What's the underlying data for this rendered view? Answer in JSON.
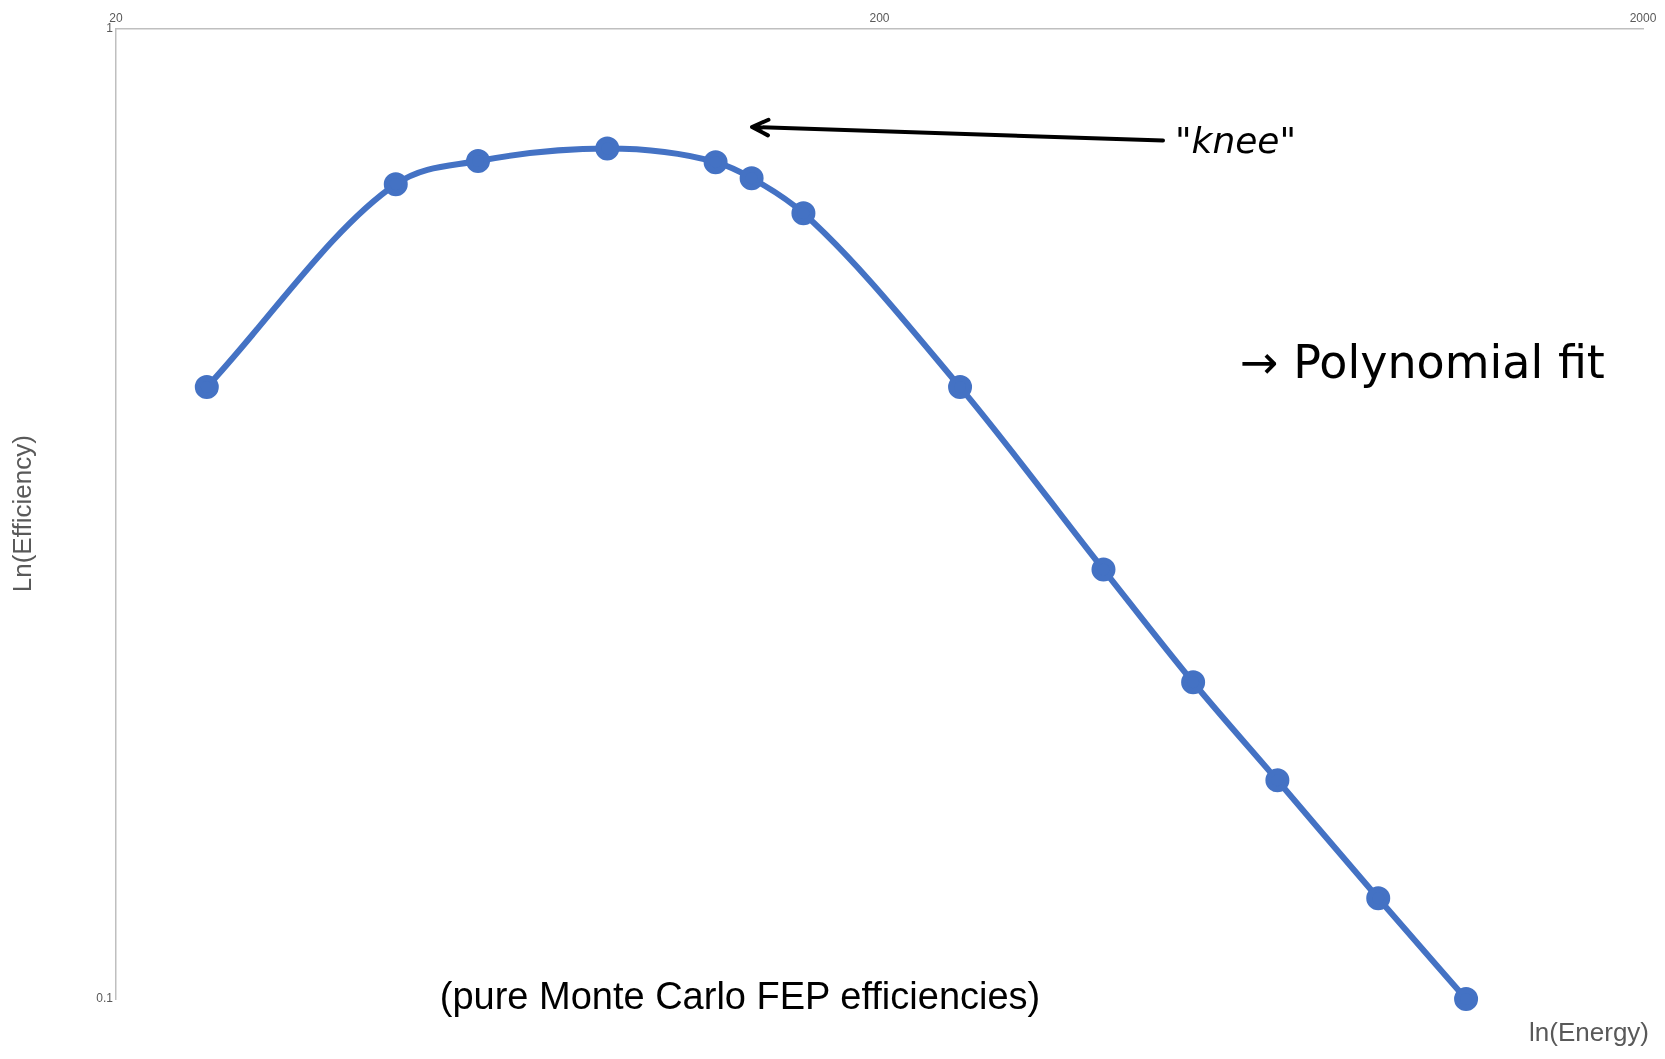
{
  "chart_data": {
    "type": "line",
    "xlabel": "ln(Energy)",
    "ylabel": "Ln(Efficiency)",
    "log": "xy",
    "grid": false,
    "legend": false,
    "marker": "circle",
    "line_style": "solid",
    "x": [
      26.3,
      46.5,
      59.6,
      88,
      122,
      136,
      159,
      255,
      393,
      515,
      664,
      900,
      1173
    ],
    "series": [
      {
        "color": "#4472c4",
        "values": [
          0.427,
          0.691,
          0.73,
          0.752,
          0.728,
          0.701,
          0.645,
          0.427,
          0.277,
          0.212,
          0.168,
          0.127,
          0.1
        ]
      }
    ],
    "xlim": [
      20,
      2000
    ],
    "xticks": [
      20,
      200,
      2000
    ],
    "ylim": [
      0.1,
      1
    ],
    "yticks": [
      1,
      0.1
    ],
    "annotations": [
      "\"knee\"",
      "→ Polynomial fit",
      "(pure Monte Carlo FEP efficiencies)"
    ]
  }
}
